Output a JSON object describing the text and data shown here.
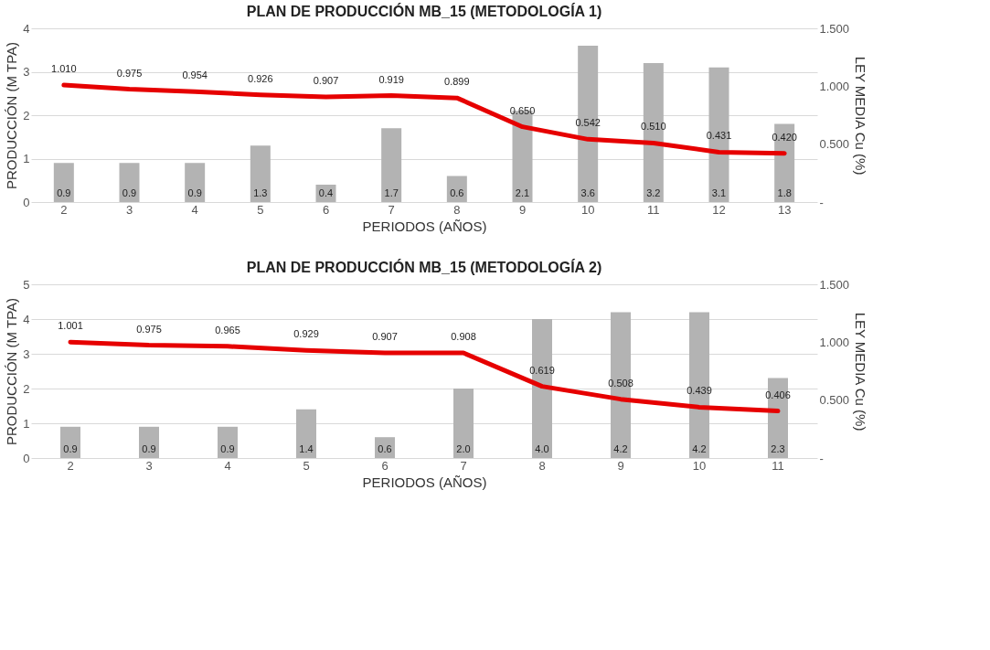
{
  "chart_data": [
    {
      "type": "bar",
      "title": "PLAN DE PRODUCCIÓN MB_15 (METODOLOGÍA 1)",
      "xlabel": "PERIODOS (AÑOS)",
      "ylabel": "PRODUCCIÓN (M TPA)",
      "y2label": "LEY MEDIA Cu (%)",
      "categories": [
        "2",
        "3",
        "4",
        "5",
        "6",
        "7",
        "8",
        "9",
        "10",
        "11",
        "12",
        "13"
      ],
      "series": [
        {
          "type": "bar",
          "axis": "y",
          "color": "#b3b3b3",
          "values": [
            0.9,
            0.9,
            0.9,
            1.3,
            0.4,
            1.7,
            0.6,
            2.1,
            3.6,
            3.2,
            3.1,
            1.8
          ],
          "value_labels": [
            "0.9",
            "0.9",
            "0.9",
            "1.3",
            "0.4",
            "1.7",
            "0.6",
            "2.1",
            "3.6",
            "3.2",
            "3.1",
            "1.8"
          ]
        },
        {
          "type": "line",
          "axis": "y2",
          "color": "#e60000",
          "values": [
            1.01,
            0.975,
            0.954,
            0.926,
            0.907,
            0.919,
            0.899,
            0.65,
            0.542,
            0.51,
            0.431,
            0.42
          ],
          "value_labels": [
            "1.010",
            "0.975",
            "0.954",
            "0.926",
            "0.907",
            "0.919",
            "0.899",
            "0.650",
            "0.542",
            "0.510",
            "0.431",
            "0.420"
          ]
        }
      ],
      "ylim": [
        0,
        4
      ],
      "yticks": [
        0,
        1,
        2,
        3,
        4
      ],
      "y2lim": [
        0,
        1.5
      ],
      "y2ticks": [
        {
          "value": 0,
          "label": "-"
        },
        {
          "value": 0.5,
          "label": "0.500"
        },
        {
          "value": 1,
          "label": "1.000"
        },
        {
          "value": 1.5,
          "label": "1.500"
        }
      ],
      "grid": "y"
    },
    {
      "type": "bar",
      "title": "PLAN DE PRODUCCIÓN MB_15 (METODOLOGÍA 2)",
      "xlabel": "PERIODOS (AÑOS)",
      "ylabel": "PRODUCCIÓN (M TPA)",
      "y2label": "LEY MEDIA Cu (%)",
      "categories": [
        "2",
        "3",
        "4",
        "5",
        "6",
        "7",
        "8",
        "9",
        "10",
        "11"
      ],
      "series": [
        {
          "type": "bar",
          "axis": "y",
          "color": "#b3b3b3",
          "values": [
            0.9,
            0.9,
            0.9,
            1.4,
            0.6,
            2.0,
            4.0,
            4.2,
            4.2,
            2.3
          ],
          "value_labels": [
            "0.9",
            "0.9",
            "0.9",
            "1.4",
            "0.6",
            "2.0",
            "4.0",
            "4.2",
            "4.2",
            "2.3"
          ]
        },
        {
          "type": "line",
          "axis": "y2",
          "color": "#e60000",
          "values": [
            1.001,
            0.975,
            0.965,
            0.929,
            0.907,
            0.908,
            0.619,
            0.508,
            0.439,
            0.406
          ],
          "value_labels": [
            "1.001",
            "0.975",
            "0.965",
            "0.929",
            "0.907",
            "0.908",
            "0.619",
            "0.508",
            "0.439",
            "0.406"
          ]
        }
      ],
      "ylim": [
        0,
        5
      ],
      "yticks": [
        0,
        1,
        2,
        3,
        4,
        5
      ],
      "y2lim": [
        0,
        1.5
      ],
      "y2ticks": [
        {
          "value": 0,
          "label": "-"
        },
        {
          "value": 0.5,
          "label": "0.500"
        },
        {
          "value": 1,
          "label": "1.000"
        },
        {
          "value": 1.5,
          "label": "1.500"
        }
      ],
      "grid": "y"
    }
  ]
}
